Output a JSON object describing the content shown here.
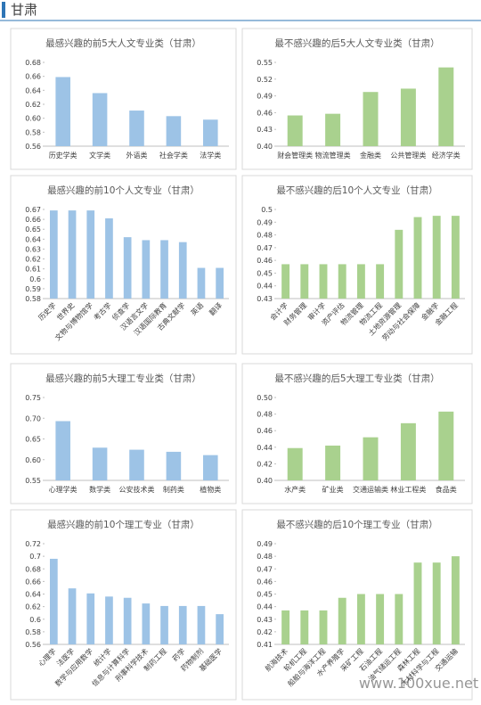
{
  "header": {
    "title": "甘肃"
  },
  "watermark": "www.100xue.net",
  "chart_data": [
    {
      "type": "bar",
      "title": "最感兴趣的前5大人文专业类（甘肃）",
      "color": "#9dc3e6",
      "grid": false,
      "categories": [
        "历史学类",
        "文学类",
        "外语类",
        "社会学类",
        "法学类"
      ],
      "values": [
        0.659,
        0.636,
        0.611,
        0.603,
        0.598
      ],
      "ylim": [
        0.56,
        0.68
      ],
      "yticks": [
        0.56,
        0.58,
        {
          "value": 0.6,
          "label": "0.60"
        },
        0.62,
        0.64,
        0.66,
        0.68
      ]
    },
    {
      "type": "bar",
      "title": "最不感兴趣的后5大人文专业类（甘肃）",
      "color": "#a9d18e",
      "grid": false,
      "categories": [
        "财会管理类",
        "物流管理类",
        "金融类",
        "公共管理类",
        "经济学类"
      ],
      "values": [
        0.455,
        0.458,
        0.497,
        0.503,
        0.541
      ],
      "ylim": [
        0.4,
        0.55
      ],
      "yticks": [
        {
          "value": 0.4,
          "label": "0.40"
        },
        0.43,
        0.46,
        0.49,
        0.52,
        0.55
      ]
    },
    {
      "type": "bar",
      "title": "最感兴趣的前10个人文专业（甘肃）",
      "color": "#9dc3e6",
      "grid": false,
      "categories": [
        "历史学",
        "世界史",
        "文物与博物馆学",
        "考古学",
        "侦查学",
        "汉语言文学",
        "汉语国际教育",
        "古典文献学",
        "英语",
        "翻译"
      ],
      "values": [
        0.669,
        0.669,
        0.669,
        0.661,
        0.642,
        0.639,
        0.639,
        0.637,
        0.611,
        0.611
      ],
      "ylim": [
        0.58,
        0.67
      ],
      "yticks": [
        0.58,
        0.59,
        0.6,
        0.61,
        0.62,
        0.63,
        0.64,
        0.65,
        0.66,
        0.67
      ]
    },
    {
      "type": "bar",
      "title": "最不感兴趣的后10个人文专业（甘肃）",
      "color": "#a9d18e",
      "grid": false,
      "categories": [
        "会计学",
        "财务管理",
        "审计学",
        "资产评估",
        "物流管理",
        "物流工程",
        "土地资源管理",
        "劳动与社会保障",
        "金融学",
        "金融工程"
      ],
      "values": [
        0.457,
        0.457,
        0.457,
        0.457,
        0.457,
        0.457,
        0.484,
        0.494,
        0.495,
        0.495
      ],
      "ylim": [
        0.43,
        0.5
      ],
      "yticks": [
        0.43,
        0.44,
        0.45,
        0.46,
        0.47,
        0.48,
        0.49,
        0.5
      ]
    },
    {
      "type": "bar",
      "title": "最感兴趣的前5大理工专业类（甘肃）",
      "color": "#9dc3e6",
      "grid": false,
      "categories": [
        "心理学类",
        "数学类",
        "公安技术类",
        "制药类",
        "植物类"
      ],
      "values": [
        0.693,
        0.629,
        0.624,
        0.619,
        0.611
      ],
      "ylim": [
        0.55,
        0.75
      ],
      "yticks": [
        0.55,
        {
          "value": 0.6,
          "label": "0.60"
        },
        0.65,
        {
          "value": 0.7,
          "label": "0.70"
        },
        0.75
      ]
    },
    {
      "type": "bar",
      "title": "最不感兴趣的后5大理工专业类（甘肃）",
      "color": "#a9d18e",
      "grid": false,
      "categories": [
        "水产类",
        "矿业类",
        "交通运输类",
        "林业工程类",
        "食品类"
      ],
      "values": [
        0.439,
        0.442,
        0.452,
        0.469,
        0.483
      ],
      "ylim": [
        0.4,
        0.5
      ],
      "yticks": [
        {
          "value": 0.4,
          "label": "0.40"
        },
        0.42,
        0.44,
        0.46,
        0.48,
        {
          "value": 0.5,
          "label": "0.50"
        }
      ]
    },
    {
      "type": "bar",
      "title": "最感兴趣的前10个理工专业（甘肃）",
      "color": "#9dc3e6",
      "grid": false,
      "categories": [
        "心理学",
        "法医学",
        "数学与应用数学",
        "统计学",
        "信息与计算科学",
        "刑事科学技术",
        "制药工程",
        "药学",
        "药物制剂",
        "基础医学"
      ],
      "values": [
        0.696,
        0.649,
        0.641,
        0.636,
        0.634,
        0.625,
        0.621,
        0.621,
        0.621,
        0.608
      ],
      "ylim": [
        0.56,
        0.72
      ],
      "yticks": [
        0.56,
        0.58,
        0.6,
        0.62,
        0.64,
        0.66,
        0.68,
        0.7,
        0.72
      ]
    },
    {
      "type": "bar",
      "title": "最不感兴趣的后10个理工专业（甘肃）",
      "color": "#a9d18e",
      "grid": false,
      "categories": [
        "航海技术",
        "轮机工程",
        "船舶与海洋工程",
        "水产养殖学",
        "采矿工程",
        "石油工程",
        "油气储运工程",
        "森林工程",
        "木材科学与工程",
        "交通运输"
      ],
      "values": [
        0.437,
        0.437,
        0.437,
        0.447,
        0.45,
        0.45,
        0.45,
        0.475,
        0.475,
        0.48
      ],
      "ylim": [
        0.41,
        0.49
      ],
      "yticks": [
        0.41,
        0.42,
        0.43,
        0.44,
        0.45,
        0.46,
        0.47,
        0.48,
        0.49
      ]
    }
  ]
}
